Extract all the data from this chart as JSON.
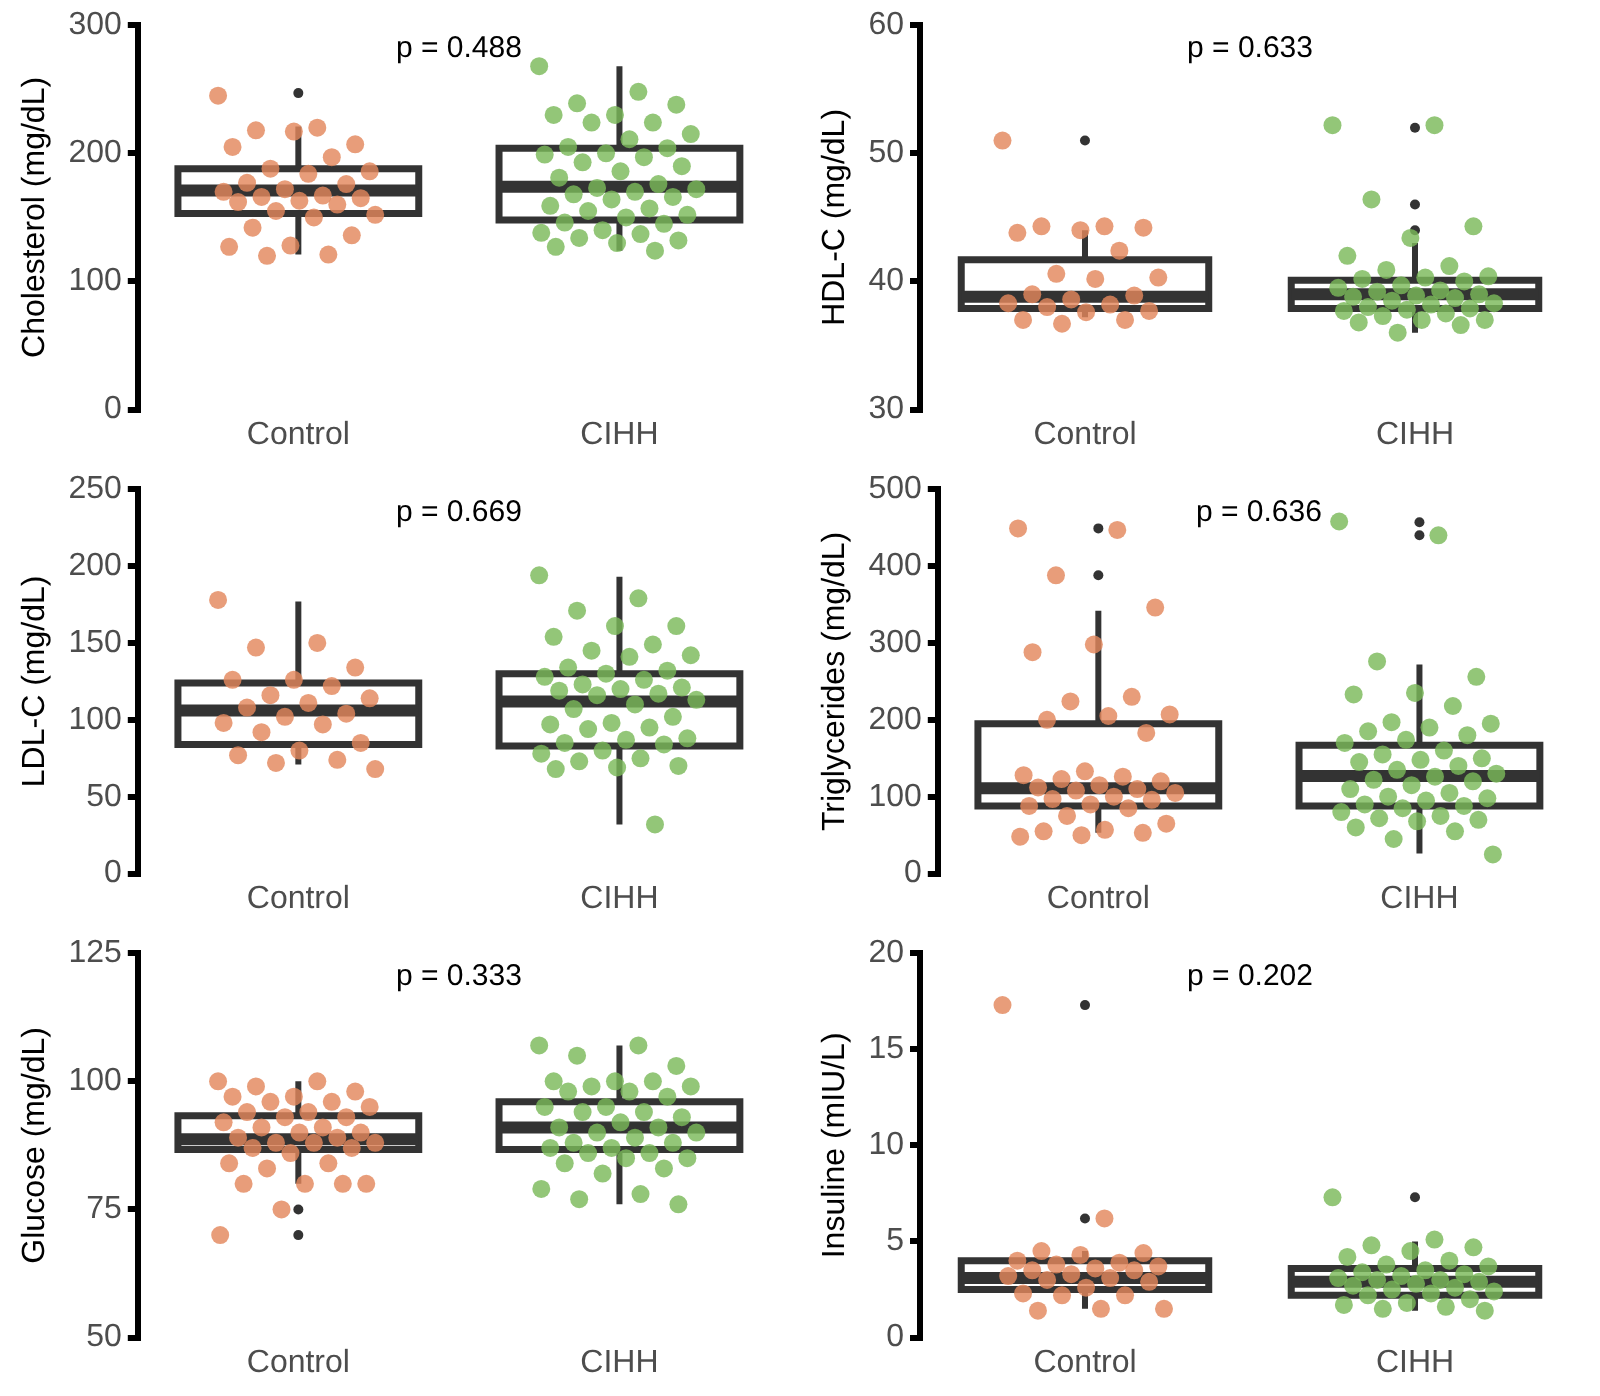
{
  "chart_data": [
    {
      "type": "box",
      "ylabel": "Cholesterol (mg/dL)",
      "categories": [
        "Control",
        "CIHH"
      ],
      "ylim": [
        0,
        300
      ],
      "yticks": [
        0,
        100,
        200,
        300
      ],
      "annotations": [
        "p = 0.488"
      ],
      "boxes": [
        {
          "low": 121,
          "q1": 153,
          "median": 171,
          "q3": 188,
          "high": 221,
          "outliers": [
            247
          ]
        },
        {
          "low": 124,
          "q1": 148,
          "median": 174,
          "q3": 204,
          "high": 268
        }
      ],
      "series": [
        {
          "type": "scatter",
          "color": "#e3875c",
          "x": [
            "Control",
            "Control",
            "Control",
            "Control",
            "Control",
            "Control",
            "Control",
            "Control",
            "Control",
            "Control",
            "Control",
            "Control",
            "Control",
            "Control",
            "Control",
            "Control",
            "Control",
            "Control",
            "Control",
            "Control",
            "Control",
            "Control",
            "Control",
            "Control",
            "Control",
            "Control",
            "Control",
            "Control",
            "Control"
          ],
          "values": [
            245,
            220,
            218,
            207,
            217,
            205,
            197,
            188,
            186,
            184,
            177,
            176,
            172,
            170,
            167,
            166,
            165,
            163,
            162,
            160,
            155,
            152,
            150,
            142,
            136,
            128,
            127,
            121,
            120
          ]
        },
        {
          "type": "scatter",
          "color": "#7bb95a",
          "x": [
            "CIHH",
            "CIHH",
            "CIHH",
            "CIHH",
            "CIHH",
            "CIHH",
            "CIHH",
            "CIHH",
            "CIHH",
            "CIHH",
            "CIHH",
            "CIHH",
            "CIHH",
            "CIHH",
            "CIHH",
            "CIHH",
            "CIHH",
            "CIHH",
            "CIHH",
            "CIHH",
            "CIHH",
            "CIHH",
            "CIHH",
            "CIHH",
            "CIHH",
            "CIHH",
            "CIHH",
            "CIHH",
            "CIHH",
            "CIHH",
            "CIHH",
            "CIHH",
            "CIHH",
            "CIHH",
            "CIHH",
            "CIHH",
            "CIHH",
            "CIHH",
            "CIHH",
            "CIHH",
            "CIHH"
          ],
          "values": [
            268,
            248,
            239,
            238,
            230,
            230,
            224,
            224,
            215,
            211,
            205,
            204,
            200,
            199,
            197,
            193,
            190,
            186,
            181,
            176,
            173,
            172,
            170,
            168,
            166,
            164,
            159,
            157,
            155,
            152,
            150,
            146,
            145,
            140,
            138,
            137,
            134,
            132,
            130,
            127,
            124
          ]
        }
      ]
    },
    {
      "type": "box",
      "ylabel": "HDL-C (mg/dL)",
      "categories": [
        "Control",
        "CIHH"
      ],
      "ylim": [
        30,
        60
      ],
      "yticks": [
        30,
        40,
        50,
        60
      ],
      "annotations": [
        "p = 0.633"
      ],
      "boxes": [
        {
          "low": 37.2,
          "q1": 37.9,
          "median": 38.8,
          "q3": 41.7,
          "high": 44,
          "outliers": [
            51
          ]
        },
        {
          "low": 36,
          "q1": 37.9,
          "median": 39,
          "q3": 40.1,
          "high": 43,
          "outliers": [
            52,
            46,
            44
          ]
        }
      ],
      "series": [
        {
          "type": "scatter",
          "color": "#e3875c",
          "x": [
            "Control",
            "Control",
            "Control",
            "Control",
            "Control",
            "Control",
            "Control",
            "Control",
            "Control",
            "Control",
            "Control",
            "Control",
            "Control",
            "Control",
            "Control",
            "Control",
            "Control",
            "Control",
            "Control",
            "Control",
            "Control"
          ],
          "values": [
            51,
            44.3,
            44.3,
            44.2,
            44,
            43.8,
            42.4,
            40.6,
            40.3,
            40.2,
            39,
            38.9,
            38.6,
            38.3,
            38.2,
            38,
            37.7,
            37.6,
            37,
            37,
            36.7
          ]
        },
        {
          "type": "scatter",
          "color": "#7bb95a",
          "x": [
            "CIHH",
            "CIHH",
            "CIHH",
            "CIHH",
            "CIHH",
            "CIHH",
            "CIHH",
            "CIHH",
            "CIHH",
            "CIHH",
            "CIHH",
            "CIHH",
            "CIHH",
            "CIHH",
            "CIHH",
            "CIHH",
            "CIHH",
            "CIHH",
            "CIHH",
            "CIHH",
            "CIHH",
            "CIHH",
            "CIHH",
            "CIHH",
            "CIHH",
            "CIHH",
            "CIHH",
            "CIHH",
            "CIHH",
            "CIHH",
            "CIHH",
            "CIHH",
            "CIHH",
            "CIHH"
          ],
          "values": [
            52.2,
            52.2,
            46.4,
            44.3,
            43.4,
            42,
            41.2,
            40.9,
            40.4,
            40.3,
            40.2,
            40,
            39.7,
            39.5,
            39.3,
            39.2,
            39,
            38.9,
            38.8,
            38.7,
            38.5,
            38.3,
            38.2,
            38,
            37.9,
            37.8,
            37.7,
            37.5,
            37.3,
            37,
            37,
            36.8,
            36.6,
            36
          ]
        }
      ]
    },
    {
      "type": "box",
      "ylabel": "LDL-C (mg/dL)",
      "categories": [
        "Control",
        "CIHH"
      ],
      "ylim": [
        0,
        250
      ],
      "yticks": [
        0,
        50,
        100,
        150,
        200,
        250
      ],
      "annotations": [
        "p = 0.669"
      ],
      "boxes": [
        {
          "low": 71,
          "q1": 84,
          "median": 106,
          "q3": 124,
          "high": 177
        },
        {
          "low": 32,
          "q1": 83,
          "median": 112,
          "q3": 130,
          "high": 193
        }
      ],
      "series": [
        {
          "type": "scatter",
          "color": "#e3875c",
          "x": [
            "Control",
            "Control",
            "Control",
            "Control",
            "Control",
            "Control",
            "Control",
            "Control",
            "Control",
            "Control",
            "Control",
            "Control",
            "Control",
            "Control",
            "Control",
            "Control",
            "Control",
            "Control",
            "Control",
            "Control",
            "Control",
            "Control"
          ],
          "values": [
            178,
            150,
            147,
            134,
            126,
            126,
            122,
            116,
            114,
            111,
            108,
            104,
            102,
            98,
            97,
            92,
            85,
            80,
            77,
            74,
            72,
            68
          ]
        },
        {
          "type": "scatter",
          "color": "#7bb95a",
          "x": [
            "CIHH",
            "CIHH",
            "CIHH",
            "CIHH",
            "CIHH",
            "CIHH",
            "CIHH",
            "CIHH",
            "CIHH",
            "CIHH",
            "CIHH",
            "CIHH",
            "CIHH",
            "CIHH",
            "CIHH",
            "CIHH",
            "CIHH",
            "CIHH",
            "CIHH",
            "CIHH",
            "CIHH",
            "CIHH",
            "CIHH",
            "CIHH",
            "CIHH",
            "CIHH",
            "CIHH",
            "CIHH",
            "CIHH",
            "CIHH",
            "CIHH",
            "CIHH",
            "CIHH",
            "CIHH",
            "CIHH",
            "CIHH",
            "CIHH",
            "CIHH",
            "CIHH",
            "CIHH",
            "CIHH"
          ],
          "values": [
            194,
            179,
            171,
            161,
            161,
            154,
            149,
            145,
            142,
            141,
            134,
            132,
            130,
            128,
            126,
            123,
            121,
            120,
            119,
            117,
            116,
            113,
            110,
            107,
            102,
            98,
            97,
            95,
            94,
            88,
            87,
            85,
            84,
            80,
            78,
            75,
            73,
            70,
            69,
            68,
            32
          ]
        }
      ]
    },
    {
      "type": "box",
      "ylabel": "Triglycerides (mg/dL)",
      "categories": [
        "Control",
        "CIHH"
      ],
      "ylim": [
        0,
        500
      ],
      "yticks": [
        0,
        100,
        200,
        300,
        400,
        500
      ],
      "annotations": [
        "p = 0.636"
      ],
      "boxes": [
        {
          "low": 53,
          "q1": 88,
          "median": 111,
          "q3": 195,
          "high": 342,
          "outliers": [
            449,
            388
          ]
        },
        {
          "low": 26,
          "q1": 88,
          "median": 127,
          "q3": 167,
          "high": 272,
          "outliers": [
            457,
            440
          ]
        }
      ],
      "series": [
        {
          "type": "scatter",
          "color": "#e3875c",
          "x": [
            "Control",
            "Control",
            "Control",
            "Control",
            "Control",
            "Control",
            "Control",
            "Control",
            "Control",
            "Control",
            "Control",
            "Control",
            "Control",
            "Control",
            "Control",
            "Control",
            "Control",
            "Control",
            "Control",
            "Control",
            "Control",
            "Control",
            "Control",
            "Control",
            "Control",
            "Control",
            "Control",
            "Control",
            "Control",
            "Control",
            "Control",
            "Control",
            "Control",
            "Control",
            "Control"
          ],
          "values": [
            449,
            447,
            388,
            346,
            298,
            288,
            230,
            224,
            207,
            205,
            200,
            183,
            133,
            128,
            126,
            123,
            120,
            115,
            112,
            110,
            108,
            105,
            100,
            97,
            96,
            90,
            88,
            85,
            75,
            65,
            57,
            55,
            53,
            50,
            48
          ]
        },
        {
          "type": "scatter",
          "color": "#7bb95a",
          "x": [
            "CIHH",
            "CIHH",
            "CIHH",
            "CIHH",
            "CIHH",
            "CIHH",
            "CIHH",
            "CIHH",
            "CIHH",
            "CIHH",
            "CIHH",
            "CIHH",
            "CIHH",
            "CIHH",
            "CIHH",
            "CIHH",
            "CIHH",
            "CIHH",
            "CIHH",
            "CIHH",
            "CIHH",
            "CIHH",
            "CIHH",
            "CIHH",
            "CIHH",
            "CIHH",
            "CIHH",
            "CIHH",
            "CIHH",
            "CIHH",
            "CIHH",
            "CIHH",
            "CIHH",
            "CIHH",
            "CIHH",
            "CIHH",
            "CIHH",
            "CIHH",
            "CIHH",
            "CIHH",
            "CIHH",
            "CIHH",
            "CIHH"
          ],
          "values": [
            458,
            440,
            276,
            256,
            235,
            233,
            218,
            197,
            195,
            190,
            185,
            180,
            174,
            170,
            160,
            155,
            150,
            148,
            145,
            140,
            135,
            130,
            126,
            122,
            120,
            115,
            110,
            105,
            100,
            98,
            95,
            90,
            88,
            85,
            80,
            75,
            72,
            70,
            68,
            60,
            55,
            45,
            25
          ]
        }
      ]
    },
    {
      "type": "box",
      "ylabel": "Glucose (mg/dL)",
      "categories": [
        "Control",
        "CIHH"
      ],
      "ylim": [
        50,
        125
      ],
      "yticks": [
        50,
        75,
        100,
        125
      ],
      "annotations": [
        "p = 0.333"
      ],
      "boxes": [
        {
          "low": 80,
          "q1": 86.7,
          "median": 88.7,
          "q3": 93.3,
          "high": 100,
          "outliers": [
            75,
            70
          ]
        },
        {
          "low": 76,
          "q1": 86.7,
          "median": 91,
          "q3": 96,
          "high": 107
        }
      ],
      "series": [
        {
          "type": "scatter",
          "color": "#e3875c",
          "x": [
            "Control",
            "Control",
            "Control",
            "Control",
            "Control",
            "Control",
            "Control",
            "Control",
            "Control",
            "Control",
            "Control",
            "Control",
            "Control",
            "Control",
            "Control",
            "Control",
            "Control",
            "Control",
            "Control",
            "Control",
            "Control",
            "Control",
            "Control",
            "Control",
            "Control",
            "Control",
            "Control",
            "Control",
            "Control",
            "Control",
            "Control",
            "Control",
            "Control",
            "Control",
            "Control"
          ],
          "values": [
            100,
            100,
            99,
            98,
            97,
            97,
            96,
            96,
            95,
            94,
            94,
            93,
            93,
            92,
            91,
            91,
            90,
            90,
            89,
            89,
            88,
            88,
            88,
            87,
            87,
            86,
            84,
            84,
            83,
            80,
            80,
            80,
            80,
            75,
            70
          ]
        },
        {
          "type": "scatter",
          "color": "#7bb95a",
          "x": [
            "CIHH",
            "CIHH",
            "CIHH",
            "CIHH",
            "CIHH",
            "CIHH",
            "CIHH",
            "CIHH",
            "CIHH",
            "CIHH",
            "CIHH",
            "CIHH",
            "CIHH",
            "CIHH",
            "CIHH",
            "CIHH",
            "CIHH",
            "CIHH",
            "CIHH",
            "CIHH",
            "CIHH",
            "CIHH",
            "CIHH",
            "CIHH",
            "CIHH",
            "CIHH",
            "CIHH",
            "CIHH",
            "CIHH",
            "CIHH",
            "CIHH",
            "CIHH",
            "CIHH",
            "CIHH",
            "CIHH",
            "CIHH",
            "CIHH",
            "CIHH"
          ],
          "values": [
            107,
            107,
            105,
            103,
            100,
            100,
            100,
            99,
            99,
            98,
            98,
            97,
            95,
            95,
            94,
            94,
            93,
            92,
            91,
            91,
            90,
            90,
            89,
            88,
            88,
            87,
            87,
            86,
            86,
            85,
            85,
            84,
            83,
            82,
            79,
            78,
            77,
            76
          ]
        }
      ]
    },
    {
      "type": "box",
      "ylabel": "Insuline (mIU/L)",
      "categories": [
        "Control",
        "CIHH"
      ],
      "ylim": [
        0,
        20
      ],
      "yticks": [
        0,
        5,
        10,
        15,
        20
      ],
      "annotations": [
        "p = 0.202"
      ],
      "boxes": [
        {
          "low": 1.5,
          "q1": 2.5,
          "median": 3.1,
          "q3": 4,
          "high": 4.5,
          "outliers": [
            17.3,
            6.2
          ]
        },
        {
          "low": 1.4,
          "q1": 2.2,
          "median": 2.9,
          "q3": 3.6,
          "high": 5,
          "outliers": [
            7.3
          ]
        }
      ],
      "series": [
        {
          "type": "scatter",
          "color": "#e3875c",
          "x": [
            "Control",
            "Control",
            "Control",
            "Control",
            "Control",
            "Control",
            "Control",
            "Control",
            "Control",
            "Control",
            "Control",
            "Control",
            "Control",
            "Control",
            "Control",
            "Control",
            "Control",
            "Control",
            "Control",
            "Control",
            "Control",
            "Control",
            "Control",
            "Control"
          ],
          "values": [
            17.3,
            6.2,
            4.5,
            4.4,
            4.3,
            4,
            3.9,
            3.8,
            3.7,
            3.6,
            3.5,
            3.5,
            3.3,
            3.2,
            3.1,
            3,
            2.9,
            2.6,
            2.3,
            2.2,
            2.2,
            1.5,
            1.5,
            1.4
          ]
        },
        {
          "type": "scatter",
          "color": "#7bb95a",
          "x": [
            "CIHH",
            "CIHH",
            "CIHH",
            "CIHH",
            "CIHH",
            "CIHH",
            "CIHH",
            "CIHH",
            "CIHH",
            "CIHH",
            "CIHH",
            "CIHH",
            "CIHH",
            "CIHH",
            "CIHH",
            "CIHH",
            "CIHH",
            "CIHH",
            "CIHH",
            "CIHH",
            "CIHH",
            "CIHH",
            "CIHH",
            "CIHH",
            "CIHH",
            "CIHH",
            "CIHH",
            "CIHH",
            "CIHH",
            "CIHH"
          ],
          "values": [
            7.3,
            5.1,
            4.8,
            4.7,
            4.5,
            4.2,
            4,
            3.8,
            3.7,
            3.5,
            3.4,
            3.3,
            3.2,
            3.1,
            3,
            3,
            2.9,
            2.8,
            2.7,
            2.6,
            2.5,
            2.4,
            2.3,
            2.2,
            2,
            1.8,
            1.7,
            1.6,
            1.5,
            1.4
          ]
        }
      ]
    }
  ]
}
